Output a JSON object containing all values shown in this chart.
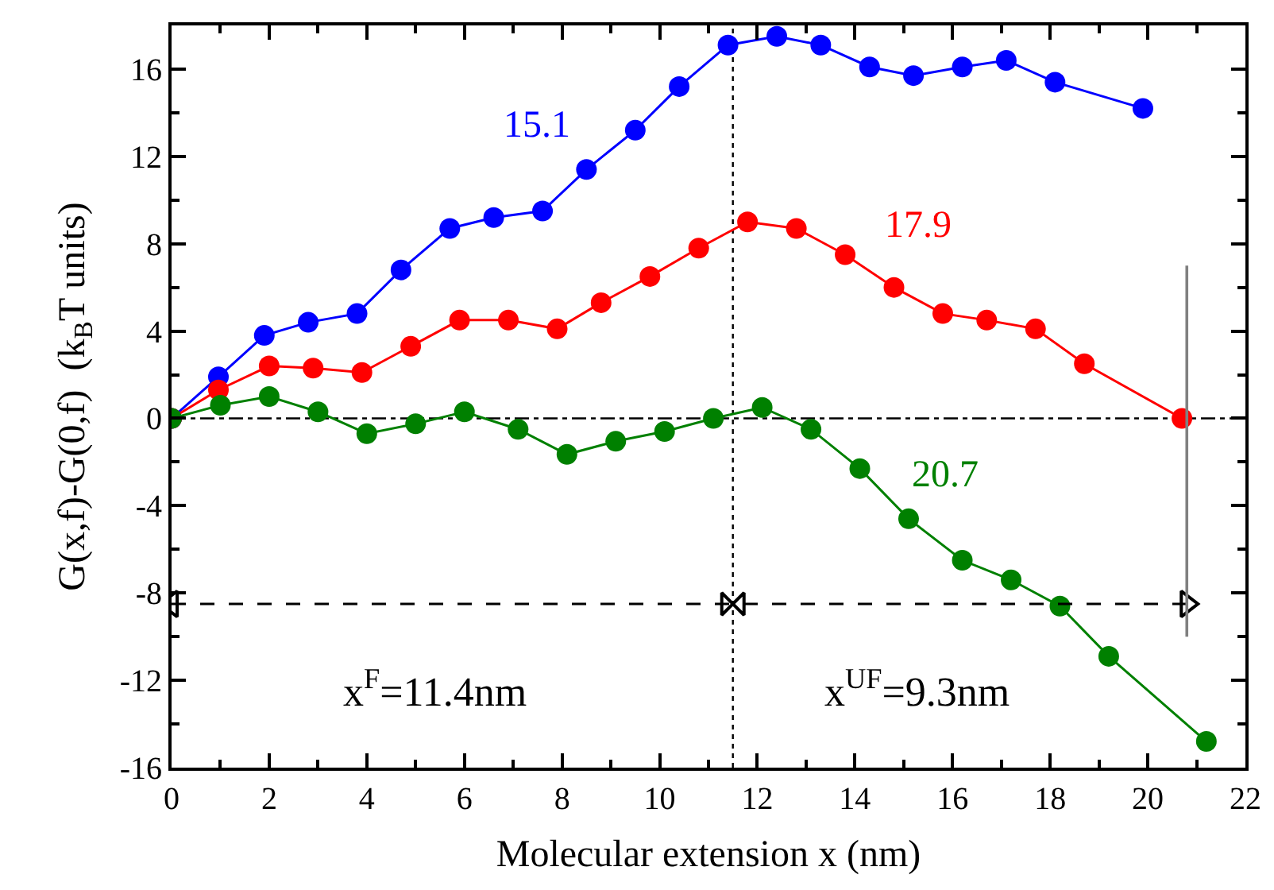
{
  "chart_data": {
    "type": "line",
    "xlabel": "Molecular extension x (nm)",
    "ylabel": "G(x,f)-G(0,f)  (k$_{B}$T units)",
    "series": [
      {
        "color": "#0000ff",
        "x": [
          0,
          0.96,
          1.9,
          2.8,
          3.8,
          4.7,
          5.7,
          6.6,
          7.6,
          8.5,
          9.5,
          10.4,
          11.4,
          12.4,
          13.3,
          14.3,
          15.2,
          16.2,
          17.1,
          18.1,
          19.9
        ],
        "values": [
          0,
          1.9,
          3.8,
          4.4,
          4.8,
          6.8,
          8.7,
          9.2,
          9.5,
          11.4,
          13.2,
          15.2,
          17.1,
          17.5,
          17.1,
          16.1,
          15.7,
          16.1,
          16.4,
          15.4,
          14.2
        ]
      },
      {
        "color": "#ff0000",
        "x": [
          0,
          0.96,
          2.0,
          2.9,
          3.9,
          4.9,
          5.9,
          6.9,
          7.9,
          8.8,
          9.8,
          10.8,
          11.8,
          12.8,
          13.8,
          14.8,
          15.8,
          16.7,
          17.7,
          18.7,
          20.7
        ],
        "values": [
          0,
          1.3,
          2.4,
          2.3,
          2.1,
          3.3,
          4.5,
          4.5,
          4.1,
          5.3,
          6.5,
          7.8,
          9.0,
          8.7,
          7.5,
          6.0,
          4.8,
          4.5,
          4.1,
          2.5,
          0
        ]
      },
      {
        "color": "#008000",
        "x": [
          0,
          1.0,
          2.0,
          3.0,
          4.0,
          5.0,
          6.0,
          7.1,
          8.1,
          9.1,
          10.1,
          11.1,
          12.1,
          13.1,
          14.1,
          15.1,
          16.2,
          17.2,
          18.2,
          19.2,
          21.2
        ],
        "values": [
          0,
          0.6,
          1.0,
          0.3,
          -0.7,
          -0.25,
          0.3,
          -0.5,
          -1.65,
          -1.05,
          -0.6,
          0,
          0.5,
          -0.5,
          -2.3,
          -4.6,
          -6.5,
          -7.4,
          -8.6,
          -10.9,
          -14.8
        ]
      },
      {
        "type": "line",
        "color": "#000000",
        "line_style": "dashed",
        "marker": "triangle",
        "x": [
          0,
          11.5,
          20.8
        ],
        "values": [
          -8.5,
          -8.5,
          -8.5
        ]
      },
      {
        "type": "line",
        "color": "#808080",
        "line_style": "solid",
        "marker": "none",
        "x": [
          20.8,
          20.8
        ],
        "values": [
          7,
          -10
        ]
      }
    ],
    "annotations": [
      "15.1",
      "17.9",
      "20.7",
      "x$^{F}$=11.4nm",
      "x$^{UF}$=9.3nm"
    ],
    "ref_lines": [
      {
        "axis": "y",
        "value": 0,
        "line_style": "dashdot",
        "color": "#000000"
      },
      {
        "axis": "x",
        "value": 11.5,
        "line_style": "dotted",
        "color": "#000000"
      }
    ],
    "xlim": [
      0,
      22
    ],
    "xticks": [
      0,
      2,
      4,
      6,
      8,
      10,
      12,
      14,
      16,
      18,
      20,
      22
    ],
    "ylim": [
      -16,
      18
    ],
    "yticks": [
      -16,
      -12,
      -8,
      -4,
      0,
      4,
      8,
      12,
      16
    ],
    "marker": "circle",
    "line_style": "solid",
    "grid": false
  }
}
